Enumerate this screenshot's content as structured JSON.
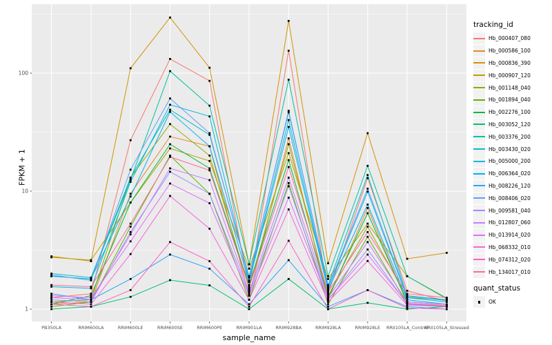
{
  "figure": {
    "y_axis_title": "FPKM + 1",
    "x_axis_title": "sample_name",
    "legend_title": "tracking_id",
    "quant_legend_title": "quant_status",
    "quant_ok_label": "OK"
  },
  "chart_data": {
    "type": "line",
    "title": "",
    "xlabel": "sample_name",
    "ylabel": "FPKM + 1",
    "y_scale": "log10",
    "y_ticks": [
      1,
      10,
      100
    ],
    "ylim": [
      0.76,
      388
    ],
    "grid": true,
    "legend_position": "right",
    "panel_bg": "#EBEBEB",
    "grid_color": "#FFFFFF",
    "axis_text_color": "#4D4D4D",
    "point_color": "#000000",
    "quant_status": {
      "title": "quant_status",
      "items": [
        "OK"
      ]
    },
    "categories": [
      "PB350LA",
      "RRIM600LA",
      "RRIM600LE",
      "RRIM600SE",
      "RRIM600PE",
      "RRIM901LA",
      "RRIM928BA",
      "RRIM928LA",
      "RRIM928LE",
      "RRII105LA_Control",
      "RRII105LA_Stressed"
    ],
    "series": [
      {
        "name": "Hb_000407_080",
        "color": "#F8766D",
        "values": [
          1.25,
          1.35,
          27,
          132,
          86,
          1.45,
          155,
          1.35,
          12.9,
          1.43,
          1.17
        ]
      },
      {
        "name": "Hb_000586_100",
        "color": "#E88526",
        "values": [
          1.1,
          1.15,
          9.5,
          29,
          24,
          1.3,
          28,
          1.2,
          7.2,
          1.12,
          1.06
        ]
      },
      {
        "name": "Hb_000836_390",
        "color": "#D39200",
        "values": [
          2.8,
          2.55,
          110,
          296,
          111,
          2.4,
          277,
          2.45,
          31,
          2.67,
          3.0
        ]
      },
      {
        "name": "Hb_000907_120",
        "color": "#B79F00",
        "values": [
          2.75,
          2.6,
          8.0,
          23,
          18,
          2.2,
          21,
          1.8,
          5.3,
          1.9,
          1.22
        ]
      },
      {
        "name": "Hb_001148_040",
        "color": "#93AA00",
        "values": [
          1.15,
          1.2,
          13,
          37,
          20,
          1.5,
          25,
          1.3,
          5.0,
          1.25,
          1.2
        ]
      },
      {
        "name": "Hb_001894_040",
        "color": "#5EB300",
        "values": [
          1.05,
          1.15,
          5.0,
          20,
          9.5,
          1.2,
          11.7,
          1.1,
          4.1,
          1.1,
          1.05
        ]
      },
      {
        "name": "Hb_002276_100",
        "color": "#00BA38",
        "values": [
          1.1,
          1.3,
          8.0,
          25,
          15.6,
          1.6,
          18.3,
          1.25,
          6.5,
          1.15,
          1.1
        ]
      },
      {
        "name": "Hb_003052_120",
        "color": "#00BF74",
        "values": [
          1.0,
          1.05,
          1.27,
          1.76,
          1.59,
          1.0,
          1.8,
          1.0,
          1.13,
          1.0,
          1.05
        ]
      },
      {
        "name": "Hb_003376_200",
        "color": "#00C19F",
        "values": [
          1.9,
          1.8,
          12.5,
          104,
          53,
          2.4,
          88,
          1.9,
          16.4,
          1.9,
          1.24
        ]
      },
      {
        "name": "Hb_003430_020",
        "color": "#00BFC4",
        "values": [
          2.0,
          1.85,
          13,
          49,
          30,
          1.9,
          46.5,
          1.6,
          13.7,
          1.3,
          1.2
        ]
      },
      {
        "name": "Hb_005000_200",
        "color": "#00BBDC",
        "values": [
          1.55,
          1.5,
          12,
          54,
          43,
          1.75,
          40,
          1.5,
          9.9,
          1.25,
          1.15
        ]
      },
      {
        "name": "Hb_006364_020",
        "color": "#00B0F6",
        "values": [
          1.9,
          1.8,
          9.0,
          47,
          24,
          1.7,
          35,
          1.45,
          7.7,
          1.2,
          1.1
        ]
      },
      {
        "name": "Hb_008226_120",
        "color": "#29A3FF",
        "values": [
          1.35,
          1.2,
          1.8,
          2.9,
          2.2,
          1.1,
          2.6,
          1.05,
          1.45,
          1.05,
          1.0
        ]
      },
      {
        "name": "Hb_008406_020",
        "color": "#619CFF",
        "values": [
          1.95,
          1.75,
          15.2,
          61,
          31,
          1.85,
          48,
          1.55,
          10.5,
          1.28,
          1.18
        ]
      },
      {
        "name": "Hb_009581_040",
        "color": "#9C8DFF",
        "values": [
          1.2,
          1.15,
          4.5,
          14.6,
          9.5,
          1.35,
          11,
          1.2,
          3.2,
          1.1,
          1.05
        ]
      },
      {
        "name": "Hb_012807_060",
        "color": "#C77CFF",
        "values": [
          1.25,
          1.2,
          4.3,
          15.6,
          12.4,
          1.4,
          13,
          1.25,
          3.7,
          1.15,
          1.1
        ]
      },
      {
        "name": "Hb_013914_020",
        "color": "#E26EF7",
        "values": [
          1.3,
          1.25,
          3.75,
          11.6,
          7.9,
          1.3,
          8.8,
          1.2,
          2.9,
          1.12,
          1.08
        ]
      },
      {
        "name": "Hb_068332_010",
        "color": "#F365DF",
        "values": [
          1.15,
          1.1,
          2.93,
          9.1,
          4.8,
          1.2,
          7.0,
          1.15,
          2.56,
          1.08,
          1.05
        ]
      },
      {
        "name": "Hb_074312_020",
        "color": "#FC61C8",
        "values": [
          1.1,
          1.05,
          1.45,
          3.7,
          2.55,
          1.05,
          3.8,
          1.0,
          1.45,
          1.02,
          1.0
        ]
      },
      {
        "name": "Hb_134017_010",
        "color": "#FF68A1",
        "values": [
          1.6,
          1.55,
          5.3,
          19.5,
          15,
          1.55,
          16,
          1.4,
          4.5,
          1.35,
          1.25
        ]
      }
    ]
  }
}
